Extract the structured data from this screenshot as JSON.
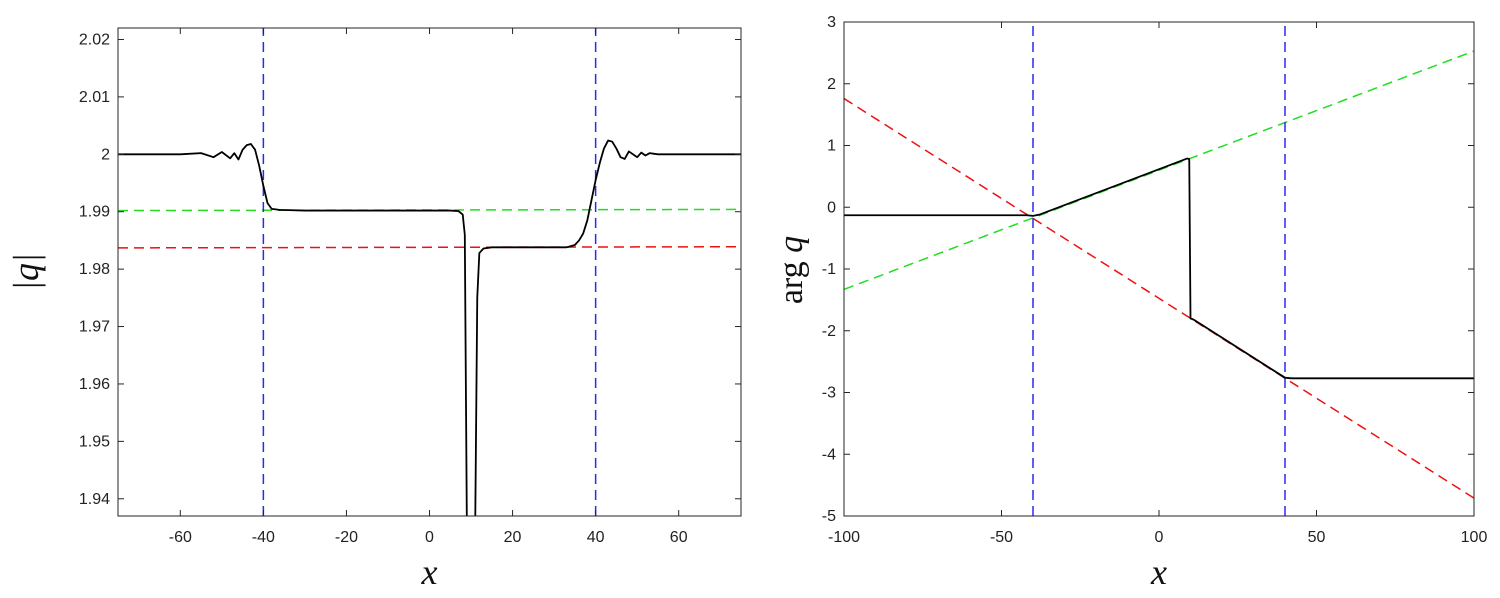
{
  "chart_data": [
    {
      "type": "line",
      "xlabel": "x",
      "ylabel": "|q|",
      "xlim": [
        -75,
        75
      ],
      "ylim": [
        1.937,
        2.022
      ],
      "xticks": [
        -60,
        -40,
        -20,
        0,
        20,
        40,
        60
      ],
      "yticks": [
        1.94,
        1.95,
        1.96,
        1.97,
        1.98,
        1.99,
        2,
        2.01,
        2.02
      ],
      "ytick_labels": [
        "1.94",
        "1.95",
        "1.96",
        "1.97",
        "1.98",
        "1.99",
        "2",
        "2.01",
        "2.02"
      ],
      "grid": false,
      "series": [
        {
          "style": "solid",
          "color": "#000000",
          "x": [
            -75,
            -65,
            -60,
            -55,
            -52,
            -50,
            -48,
            -47,
            -46,
            -45,
            -44,
            -43,
            -42,
            -41,
            -40,
            -39,
            -38,
            -37,
            -36,
            -35,
            -30,
            -20,
            -10,
            0,
            5,
            7,
            8,
            8.5,
            9,
            10,
            11,
            11.5,
            12,
            13,
            15,
            20,
            30,
            33,
            35,
            36,
            37,
            38,
            39,
            40,
            41,
            42,
            43,
            44,
            45,
            46,
            47,
            48,
            49,
            50,
            51,
            52,
            53,
            55,
            60,
            75
          ],
          "y": [
            2.0,
            2.0,
            2.0,
            2.0002,
            1.9995,
            2.0004,
            1.9993,
            2.0002,
            1.9991,
            2.0008,
            2.0016,
            2.0018,
            2.0008,
            1.998,
            1.9945,
            1.9915,
            1.9905,
            1.9904,
            1.9903,
            1.9903,
            1.9902,
            1.9902,
            1.9902,
            1.9902,
            1.9902,
            1.9901,
            1.9895,
            1.986,
            1.935,
            1.935,
            1.935,
            1.975,
            1.9828,
            1.9836,
            1.9838,
            1.9838,
            1.9838,
            1.9838,
            1.9842,
            1.985,
            1.9862,
            1.9885,
            1.992,
            1.9955,
            1.9985,
            2.001,
            2.0024,
            2.0022,
            2.001,
            1.9995,
            1.9992,
            2.0005,
            2.0,
            1.9995,
            2.0003,
            1.9998,
            2.0002,
            2.0,
            2.0,
            2.0
          ]
        },
        {
          "style": "dashed",
          "color": "#22dd22",
          "x": [
            -75,
            75
          ],
          "y": [
            1.9902,
            1.9904
          ]
        },
        {
          "style": "dashed",
          "color": "#ee1111",
          "x": [
            -75,
            75
          ],
          "y": [
            1.9837,
            1.9839
          ]
        },
        {
          "style": "dashed",
          "color": "#2a2aee",
          "x": [
            -40,
            -40
          ],
          "y": [
            1.937,
            2.022
          ]
        },
        {
          "style": "dashed",
          "color": "#2a2aee",
          "x": [
            40,
            40
          ],
          "y": [
            1.937,
            2.022
          ]
        }
      ]
    },
    {
      "type": "line",
      "xlabel": "x",
      "ylabel": "arg q",
      "xlim": [
        -100,
        100
      ],
      "ylim": [
        -5,
        3
      ],
      "xticks": [
        -100,
        -50,
        0,
        50,
        100
      ],
      "yticks": [
        -5,
        -4,
        -3,
        -2,
        -1,
        0,
        1,
        2,
        3
      ],
      "ytick_labels": [
        "-5",
        "-4",
        "-3",
        "-2",
        "-1",
        "0",
        "1",
        "2",
        "3"
      ],
      "grid": false,
      "series": [
        {
          "style": "solid",
          "color": "#000000",
          "x": [
            -100,
            -42,
            -40,
            -38,
            9,
            9.6,
            10,
            11,
            40,
            42,
            100
          ],
          "y": [
            -0.13,
            -0.13,
            -0.14,
            -0.12,
            0.79,
            0.78,
            -1.8,
            -1.82,
            -2.76,
            -2.77,
            -2.77
          ]
        },
        {
          "style": "dashed",
          "color": "#22dd22",
          "x": [
            -100,
            100
          ],
          "y": [
            -1.33,
            2.53
          ]
        },
        {
          "style": "dashed",
          "color": "#ee1111",
          "x": [
            -100,
            100
          ],
          "y": [
            1.76,
            -4.71
          ]
        },
        {
          "style": "dashed",
          "color": "#2a2aee",
          "x": [
            -40,
            -40
          ],
          "y": [
            -5,
            3
          ]
        },
        {
          "style": "dashed",
          "color": "#2a2aee",
          "x": [
            40,
            40
          ],
          "y": [
            -5,
            3
          ]
        }
      ]
    }
  ]
}
